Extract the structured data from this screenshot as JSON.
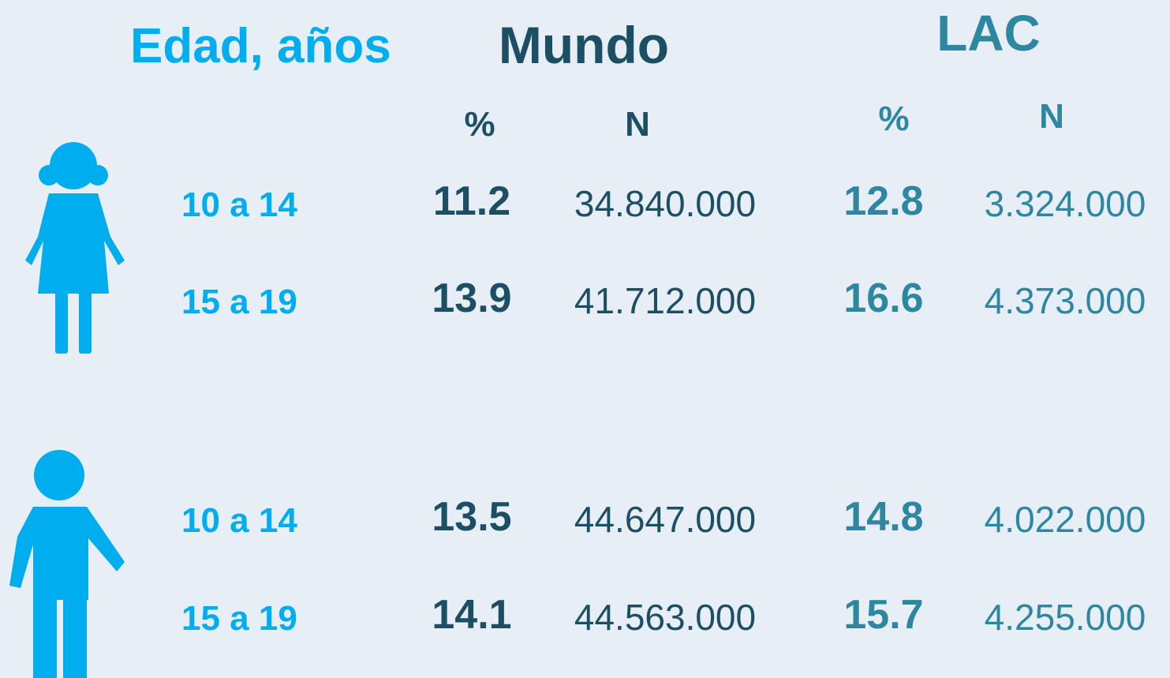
{
  "header": {
    "age_label": "Edad, años",
    "world": "Mundo",
    "lac": "LAC"
  },
  "subheader": {
    "world_pct": "%",
    "world_n": "N",
    "lac_pct": "%",
    "lac_n": "N"
  },
  "rows": [
    {
      "age": "10 a 14",
      "world_pct": "11.2",
      "world_n": "34.840.000",
      "lac_pct": "12.8",
      "lac_n": "3.324.000"
    },
    {
      "age": "15 a 19",
      "world_pct": "13.9",
      "world_n": "41.712.000",
      "lac_pct": "16.6",
      "lac_n": "4.373.000"
    },
    {
      "age": "10 a 14",
      "world_pct": "13.5",
      "world_n": "44.647.000",
      "lac_pct": "14.8",
      "lac_n": "4.022.000"
    },
    {
      "age": "15 a 19",
      "world_pct": "14.1",
      "world_n": "44.563.000",
      "lac_pct": "15.7",
      "lac_n": "4.255.000"
    }
  ]
}
